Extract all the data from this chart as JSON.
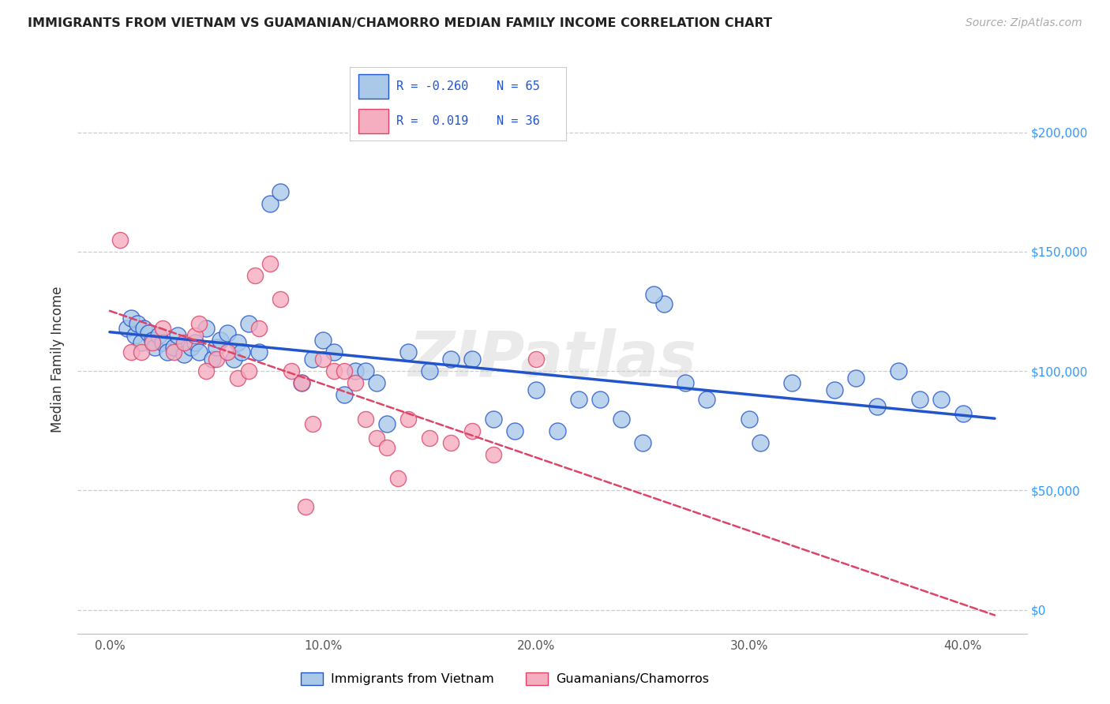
{
  "title": "IMMIGRANTS FROM VIETNAM VS GUAMANIAN/CHAMORRO MEDIAN FAMILY INCOME CORRELATION CHART",
  "source": "Source: ZipAtlas.com",
  "ylabel": "Median Family Income",
  "xlabel_vals": [
    0.0,
    10.0,
    20.0,
    30.0,
    40.0
  ],
  "xlabel_ticks": [
    "0.0%",
    "10.0%",
    "20.0%",
    "30.0%",
    "40.0%"
  ],
  "ylabel_vals": [
    0,
    50000,
    100000,
    150000,
    200000
  ],
  "ylabel_ticks": [
    "$0",
    "$50,000",
    "$100,000",
    "$150,000",
    "$200,000"
  ],
  "xlim": [
    -1.5,
    43.0
  ],
  "ylim": [
    -10000,
    220000
  ],
  "blue_R": "-0.260",
  "blue_N": "65",
  "pink_R": "0.019",
  "pink_N": "36",
  "blue_color": "#aac8e8",
  "pink_color": "#f5adc0",
  "blue_line_color": "#2255cc",
  "pink_line_color": "#dd4466",
  "legend_label_blue": "Immigrants from Vietnam",
  "legend_label_pink": "Guamanians/Chamorros",
  "watermark": "ZIPatlas",
  "blue_x": [
    0.8,
    1.0,
    1.2,
    1.3,
    1.5,
    1.6,
    1.8,
    2.0,
    2.1,
    2.3,
    2.5,
    2.7,
    3.0,
    3.2,
    3.5,
    3.8,
    4.0,
    4.2,
    4.5,
    4.8,
    5.0,
    5.2,
    5.5,
    5.8,
    6.0,
    6.2,
    6.5,
    7.0,
    7.5,
    8.0,
    9.0,
    9.5,
    10.0,
    10.5,
    11.0,
    11.5,
    12.0,
    12.5,
    13.0,
    14.0,
    15.0,
    16.0,
    17.0,
    18.0,
    19.0,
    20.0,
    21.0,
    22.0,
    23.0,
    24.0,
    25.0,
    26.0,
    27.0,
    28.0,
    30.0,
    32.0,
    34.0,
    35.0,
    36.0,
    37.0,
    38.0,
    39.0,
    40.0,
    25.5,
    30.5
  ],
  "blue_y": [
    118000,
    122000,
    115000,
    120000,
    112000,
    118000,
    116000,
    113000,
    110000,
    115000,
    112000,
    108000,
    110000,
    115000,
    107000,
    110000,
    112000,
    108000,
    118000,
    105000,
    110000,
    113000,
    116000,
    105000,
    112000,
    108000,
    120000,
    108000,
    170000,
    175000,
    95000,
    105000,
    113000,
    108000,
    90000,
    100000,
    100000,
    95000,
    78000,
    108000,
    100000,
    105000,
    105000,
    80000,
    75000,
    92000,
    75000,
    88000,
    88000,
    80000,
    70000,
    128000,
    95000,
    88000,
    80000,
    95000,
    92000,
    97000,
    85000,
    100000,
    88000,
    88000,
    82000,
    132000,
    70000
  ],
  "pink_x": [
    0.5,
    1.0,
    1.5,
    2.0,
    2.5,
    3.0,
    3.5,
    4.0,
    4.5,
    5.0,
    5.5,
    6.0,
    6.5,
    7.0,
    7.5,
    8.0,
    8.5,
    9.0,
    9.5,
    10.0,
    10.5,
    11.0,
    11.5,
    12.0,
    12.5,
    13.0,
    14.0,
    15.0,
    16.0,
    17.0,
    18.0,
    20.0,
    9.2,
    13.5,
    4.2,
    6.8
  ],
  "pink_y": [
    155000,
    108000,
    108000,
    112000,
    118000,
    108000,
    112000,
    115000,
    100000,
    105000,
    108000,
    97000,
    100000,
    118000,
    145000,
    130000,
    100000,
    95000,
    78000,
    105000,
    100000,
    100000,
    95000,
    80000,
    72000,
    68000,
    80000,
    72000,
    70000,
    75000,
    65000,
    105000,
    43000,
    55000,
    120000,
    140000
  ]
}
